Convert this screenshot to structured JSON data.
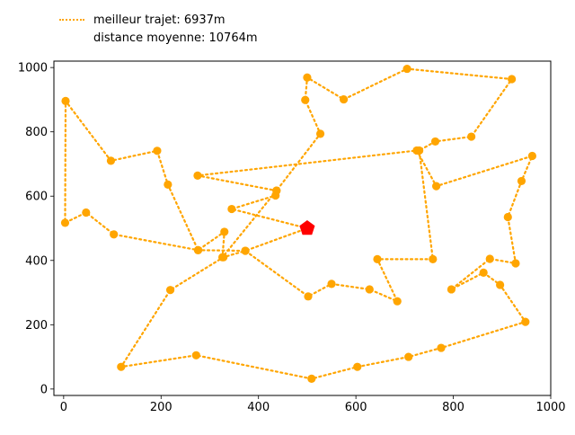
{
  "chart_data": {
    "type": "line",
    "title": "",
    "xlabel": "",
    "ylabel": "",
    "xlim": [
      -20,
      1000
    ],
    "ylim": [
      -20,
      1020
    ],
    "xticks": [
      0,
      200,
      400,
      600,
      800,
      1000
    ],
    "yticks": [
      0,
      200,
      400,
      600,
      800,
      1000
    ],
    "grid": false,
    "legend_placement": "top-left, outside plot",
    "colors": {
      "route": "#ffa500",
      "start": "#ff0000"
    },
    "legend": [
      {
        "label": "meilleur trajet: 6937m",
        "marker": "dotted-line"
      },
      {
        "label": "distance moyenne: 10764m",
        "marker": "none"
      }
    ],
    "start_point": {
      "x": 500,
      "y": 500,
      "marker": "pentagon"
    },
    "series": [
      {
        "name": "meilleur trajet: 6937m",
        "x": [
          500,
          345,
          435,
          437,
          275,
          725,
          765,
          962,
          940,
          912,
          928,
          875,
          796,
          862,
          896,
          948,
          775,
          708,
          603,
          509,
          272,
          118,
          219,
          328,
          373,
          502,
          550,
          628,
          685,
          644,
          758,
          730,
          763,
          837,
          920,
          705,
          575,
          500,
          496,
          527,
          437,
          326,
          330,
          276,
          214,
          192,
          97,
          4,
          3,
          46,
          103,
          276,
          373,
          500
        ],
        "y": [
          500,
          560,
          602,
          617,
          664,
          742,
          631,
          725,
          647,
          535,
          391,
          405,
          310,
          362,
          324,
          209,
          128,
          100,
          69,
          32,
          105,
          69,
          308,
          410,
          430,
          288,
          327,
          310,
          273,
          404,
          404,
          742,
          770,
          785,
          964,
          996,
          901,
          969,
          899,
          794,
          617,
          410,
          489,
          432,
          636,
          741,
          710,
          896,
          517,
          549,
          481,
          432,
          430,
          500
        ]
      }
    ]
  }
}
